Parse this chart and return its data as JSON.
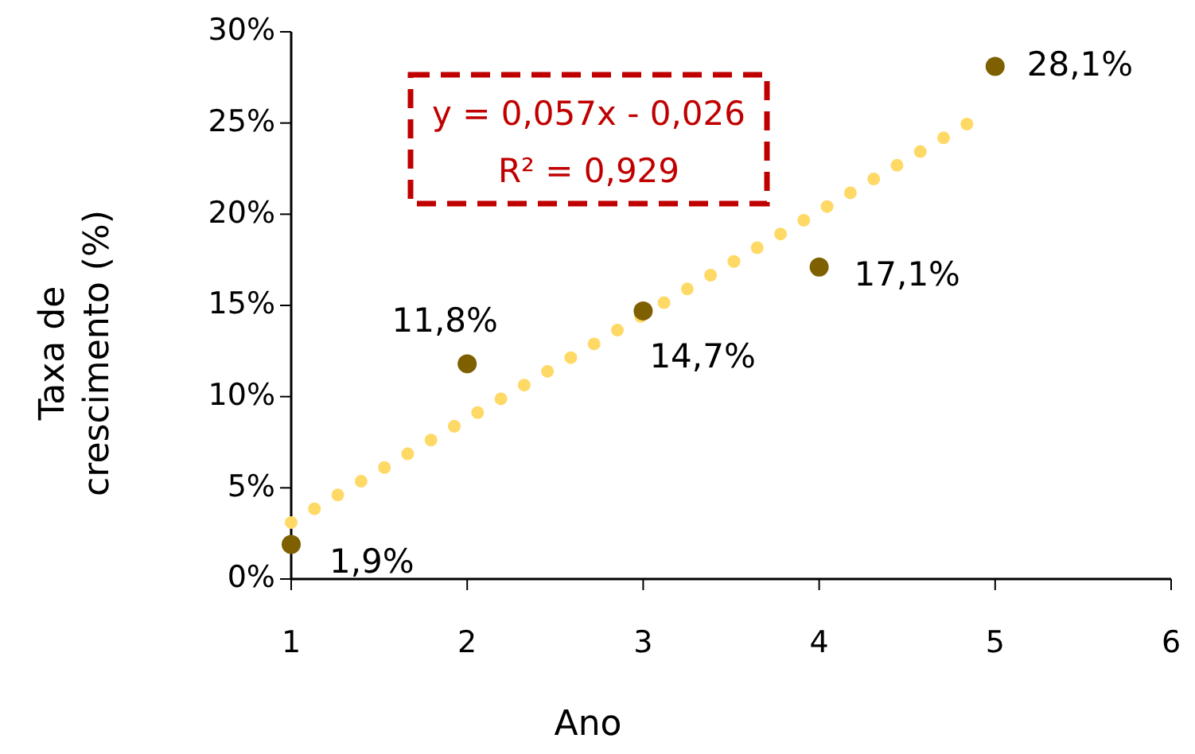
{
  "chart_data": {
    "type": "scatter",
    "xlabel": "Ano",
    "ylabel": "Taxa de\ncrescimento (%)",
    "xlim": [
      1,
      6
    ],
    "xticks": [
      1,
      2,
      3,
      4,
      5,
      6
    ],
    "ylim": [
      0,
      30
    ],
    "yticks": [
      {
        "value": 0,
        "label": "0%"
      },
      {
        "value": 5,
        "label": "5%"
      },
      {
        "value": 10,
        "label": "10%"
      },
      {
        "value": 15,
        "label": "15%"
      },
      {
        "value": 20,
        "label": "20%"
      },
      {
        "value": 25,
        "label": "25%"
      },
      {
        "value": 30,
        "label": "30%"
      }
    ],
    "grid": false,
    "annotations": [
      "y = 0,057x - 0,026",
      "R² = 0,929"
    ],
    "series": [
      {
        "type": "line",
        "color": "#ffd966",
        "x": [
          1,
          4.85
        ],
        "values": [
          3.1,
          25.0
        ],
        "line_style": "dotted",
        "marker": "none"
      },
      {
        "color": "#7f6000",
        "x": [
          1,
          2,
          3,
          4,
          5
        ],
        "values": [
          1.9,
          11.8,
          14.7,
          17.1,
          28.1
        ],
        "marker": "circle",
        "value_labels": [
          "1,9%",
          "11,8%",
          "14,7%",
          "17,1%",
          "28,1%"
        ]
      }
    ]
  }
}
